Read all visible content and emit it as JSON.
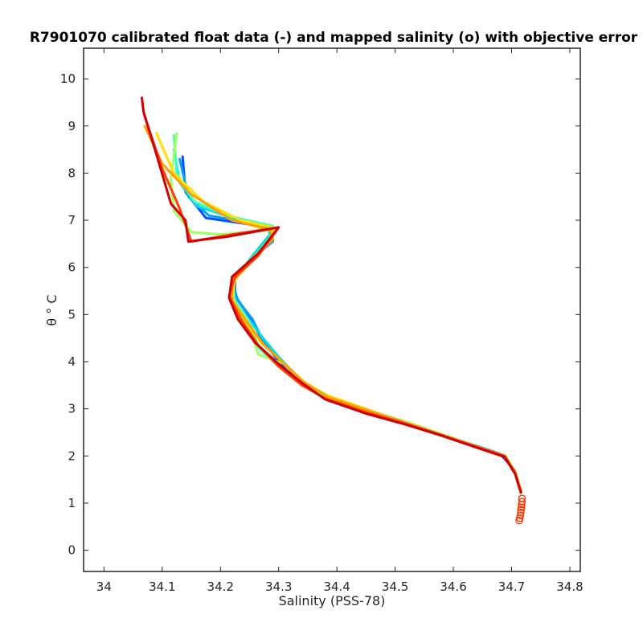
{
  "chart_data": {
    "type": "line",
    "title": "R7901070 calibrated float data (-) and mapped salinity (o) with objective error",
    "xlabel": "Salinity (PSS-78)",
    "ylabel": "θ ° C",
    "xlim": [
      33.965,
      34.818
    ],
    "ylim": [
      -0.45,
      10.65
    ],
    "xticks": [
      "34",
      "34.1",
      "34.2",
      "34.3",
      "34.4",
      "34.5",
      "34.6",
      "34.7",
      "34.8"
    ],
    "yticks": [
      "0",
      "1",
      "2",
      "3",
      "4",
      "5",
      "6",
      "7",
      "8",
      "9",
      "10"
    ],
    "grid": false,
    "series": [
      {
        "color": "#0050ff",
        "values": [
          [
            34.135,
            8.35
          ],
          [
            34.14,
            7.6
          ],
          [
            34.175,
            7.05
          ],
          [
            34.23,
            6.95
          ],
          [
            34.285,
            6.85
          ],
          [
            34.29,
            6.6
          ],
          [
            34.255,
            6.2
          ],
          [
            34.225,
            5.8
          ],
          [
            34.225,
            5.4
          ],
          [
            34.25,
            4.95
          ],
          [
            34.27,
            4.5
          ],
          [
            34.3,
            4.0
          ],
          [
            34.33,
            3.6
          ],
          [
            34.37,
            3.3
          ],
          [
            34.43,
            3.0
          ],
          [
            34.5,
            2.75
          ],
          [
            34.57,
            2.5
          ],
          [
            34.63,
            2.25
          ],
          [
            34.68,
            2.05
          ],
          [
            34.705,
            1.7
          ],
          [
            34.715,
            1.3
          ]
        ]
      },
      {
        "color": "#00a0ff",
        "values": [
          [
            34.13,
            8.3
          ],
          [
            34.145,
            7.5
          ],
          [
            34.18,
            7.1
          ],
          [
            34.25,
            6.95
          ],
          [
            34.29,
            6.8
          ],
          [
            34.29,
            6.55
          ],
          [
            34.25,
            6.15
          ],
          [
            34.22,
            5.7
          ],
          [
            34.23,
            5.3
          ],
          [
            34.255,
            4.9
          ],
          [
            34.275,
            4.4
          ],
          [
            34.31,
            3.95
          ],
          [
            34.34,
            3.55
          ],
          [
            34.38,
            3.25
          ],
          [
            34.45,
            2.95
          ],
          [
            34.52,
            2.7
          ],
          [
            34.58,
            2.45
          ],
          [
            34.64,
            2.2
          ],
          [
            34.69,
            2.0
          ],
          [
            34.706,
            1.65
          ],
          [
            34.716,
            1.25
          ]
        ]
      },
      {
        "color": "#00e0e0",
        "values": [
          [
            34.12,
            8.5
          ],
          [
            34.13,
            7.8
          ],
          [
            34.16,
            7.3
          ],
          [
            34.22,
            7.05
          ],
          [
            34.28,
            6.9
          ],
          [
            34.285,
            6.7
          ],
          [
            34.255,
            6.25
          ],
          [
            34.225,
            5.75
          ],
          [
            34.22,
            5.35
          ],
          [
            34.245,
            4.95
          ],
          [
            34.27,
            4.55
          ],
          [
            34.3,
            4.1
          ],
          [
            34.335,
            3.65
          ],
          [
            34.375,
            3.3
          ],
          [
            34.44,
            3.0
          ],
          [
            34.51,
            2.72
          ],
          [
            34.575,
            2.48
          ],
          [
            34.635,
            2.22
          ],
          [
            34.685,
            2.02
          ],
          [
            34.705,
            1.68
          ],
          [
            34.716,
            1.28
          ]
        ]
      },
      {
        "color": "#40ffc0",
        "values": [
          [
            34.12,
            8.8
          ],
          [
            34.125,
            8.0
          ],
          [
            34.155,
            7.4
          ],
          [
            34.21,
            7.1
          ],
          [
            34.29,
            6.88
          ],
          [
            34.29,
            6.65
          ],
          [
            34.255,
            6.2
          ],
          [
            34.22,
            5.7
          ],
          [
            34.225,
            5.3
          ],
          [
            34.25,
            4.85
          ],
          [
            34.265,
            4.3
          ],
          [
            34.3,
            3.9
          ],
          [
            34.34,
            3.55
          ],
          [
            34.38,
            3.25
          ],
          [
            34.45,
            2.95
          ],
          [
            34.52,
            2.7
          ],
          [
            34.58,
            2.46
          ],
          [
            34.64,
            2.2
          ],
          [
            34.69,
            2.0
          ],
          [
            34.706,
            1.66
          ],
          [
            34.716,
            1.26
          ]
        ]
      },
      {
        "color": "#a0ff60",
        "values": [
          [
            34.125,
            8.85
          ],
          [
            34.115,
            7.9
          ],
          [
            34.12,
            7.2
          ],
          [
            34.15,
            6.75
          ],
          [
            34.2,
            6.7
          ],
          [
            34.295,
            6.8
          ],
          [
            34.26,
            6.2
          ],
          [
            34.225,
            5.75
          ],
          [
            34.22,
            5.3
          ],
          [
            34.245,
            4.9
          ],
          [
            34.265,
            4.15
          ],
          [
            34.31,
            3.95
          ],
          [
            34.345,
            3.55
          ],
          [
            34.39,
            3.25
          ],
          [
            34.46,
            2.95
          ],
          [
            34.53,
            2.68
          ],
          [
            34.59,
            2.42
          ],
          [
            34.645,
            2.18
          ],
          [
            34.69,
            2.0
          ],
          [
            34.707,
            1.64
          ],
          [
            34.717,
            1.24
          ]
        ]
      },
      {
        "color": "#ffe000",
        "values": [
          [
            34.09,
            8.85
          ],
          [
            34.12,
            8.0
          ],
          [
            34.17,
            7.4
          ],
          [
            34.235,
            7.0
          ],
          [
            34.29,
            6.85
          ],
          [
            34.29,
            6.6
          ],
          [
            34.255,
            6.2
          ],
          [
            34.225,
            5.75
          ],
          [
            34.22,
            5.35
          ],
          [
            34.24,
            4.9
          ],
          [
            34.27,
            4.4
          ],
          [
            34.31,
            3.95
          ],
          [
            34.34,
            3.6
          ],
          [
            34.38,
            3.3
          ],
          [
            34.45,
            3.0
          ],
          [
            34.51,
            2.72
          ],
          [
            34.575,
            2.47
          ],
          [
            34.635,
            2.21
          ],
          [
            34.686,
            2.01
          ],
          [
            34.706,
            1.66
          ],
          [
            34.716,
            1.26
          ]
        ]
      },
      {
        "color": "#ffa000",
        "values": [
          [
            34.07,
            9.0
          ],
          [
            34.1,
            8.2
          ],
          [
            34.15,
            7.55
          ],
          [
            34.22,
            7.0
          ],
          [
            34.285,
            6.8
          ],
          [
            34.29,
            6.6
          ],
          [
            34.255,
            6.15
          ],
          [
            34.22,
            5.7
          ],
          [
            34.22,
            5.3
          ],
          [
            34.245,
            4.85
          ],
          [
            34.275,
            4.35
          ],
          [
            34.31,
            3.95
          ],
          [
            34.345,
            3.55
          ],
          [
            34.385,
            3.25
          ],
          [
            34.455,
            2.96
          ],
          [
            34.52,
            2.7
          ],
          [
            34.58,
            2.45
          ],
          [
            34.64,
            2.2
          ],
          [
            34.688,
            2.0
          ],
          [
            34.706,
            1.66
          ],
          [
            34.716,
            1.26
          ]
        ]
      },
      {
        "color": "#ff4000",
        "values": [
          [
            34.07,
            9.2
          ],
          [
            34.1,
            8.1
          ],
          [
            34.13,
            7.25
          ],
          [
            34.15,
            6.55
          ],
          [
            34.22,
            6.7
          ],
          [
            34.3,
            6.85
          ],
          [
            34.265,
            6.25
          ],
          [
            34.225,
            5.8
          ],
          [
            34.215,
            5.4
          ],
          [
            34.235,
            4.9
          ],
          [
            34.265,
            4.35
          ],
          [
            34.3,
            3.9
          ],
          [
            34.34,
            3.5
          ],
          [
            34.38,
            3.22
          ],
          [
            34.45,
            2.93
          ],
          [
            34.52,
            2.68
          ],
          [
            34.58,
            2.44
          ],
          [
            34.64,
            2.19
          ],
          [
            34.688,
            2.0
          ],
          [
            34.706,
            1.64
          ],
          [
            34.716,
            1.24
          ]
        ]
      },
      {
        "color": "#d00000",
        "values": [
          [
            34.065,
            9.6
          ],
          [
            34.068,
            9.3
          ],
          [
            34.09,
            8.4
          ],
          [
            34.115,
            7.35
          ],
          [
            34.14,
            7.0
          ],
          [
            34.145,
            6.55
          ],
          [
            34.21,
            6.65
          ],
          [
            34.3,
            6.85
          ],
          [
            34.265,
            6.3
          ],
          [
            34.22,
            5.8
          ],
          [
            34.215,
            5.35
          ],
          [
            34.23,
            4.9
          ],
          [
            34.26,
            4.4
          ],
          [
            34.3,
            3.95
          ],
          [
            34.34,
            3.55
          ],
          [
            34.38,
            3.2
          ],
          [
            34.45,
            2.9
          ],
          [
            34.52,
            2.66
          ],
          [
            34.58,
            2.43
          ],
          [
            34.64,
            2.18
          ],
          [
            34.688,
            1.98
          ],
          [
            34.706,
            1.62
          ],
          [
            34.716,
            1.22
          ]
        ]
      }
    ],
    "mapped": {
      "color": "#ff3000",
      "values": [
        [
          34.718,
          1.1
        ],
        [
          34.718,
          1.03
        ],
        [
          34.717,
          0.97
        ],
        [
          34.717,
          0.91
        ],
        [
          34.716,
          0.86
        ],
        [
          34.716,
          0.8
        ],
        [
          34.715,
          0.74
        ],
        [
          34.714,
          0.68
        ],
        [
          34.713,
          0.63
        ]
      ]
    }
  }
}
